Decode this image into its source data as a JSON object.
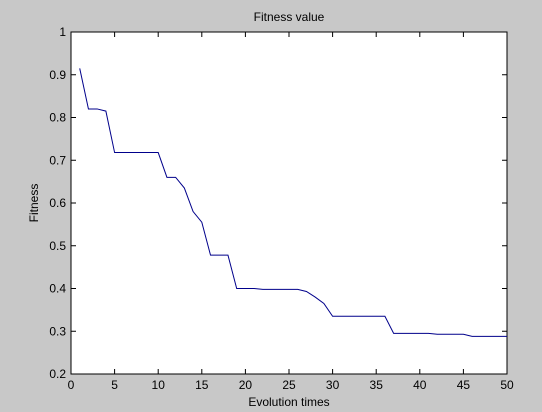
{
  "chart_data": {
    "type": "line",
    "title": "Fitness value",
    "xlabel": "Evolution times",
    "ylabel": "Fitness",
    "xlim": [
      0,
      50
    ],
    "ylim": [
      0.2,
      1
    ],
    "xticks": [
      0,
      5,
      10,
      15,
      20,
      25,
      30,
      35,
      40,
      45,
      50
    ],
    "yticks": [
      0.2,
      0.3,
      0.4,
      0.5,
      0.6,
      0.7,
      0.8,
      0.9,
      1
    ],
    "ytick_labels": [
      "0.2",
      "0.3",
      "0.4",
      "0.5",
      "0.6",
      "0.7",
      "0.8",
      "0.9",
      "1"
    ],
    "grid": false,
    "line_color": "#00008b",
    "series": [
      {
        "x": [
          1,
          2,
          3,
          4,
          5,
          6,
          7,
          8,
          9,
          10,
          11,
          12,
          13,
          14,
          15,
          16,
          17,
          18,
          19,
          20,
          21,
          22,
          23,
          24,
          25,
          26,
          27,
          28,
          29,
          30,
          31,
          32,
          33,
          34,
          35,
          36,
          37,
          38,
          39,
          40,
          41,
          42,
          43,
          44,
          45,
          46,
          47,
          48,
          49,
          50
        ],
        "values": [
          0.915,
          0.82,
          0.82,
          0.815,
          0.718,
          0.718,
          0.718,
          0.718,
          0.718,
          0.718,
          0.66,
          0.66,
          0.635,
          0.58,
          0.555,
          0.478,
          0.478,
          0.478,
          0.4,
          0.4,
          0.4,
          0.398,
          0.398,
          0.398,
          0.398,
          0.398,
          0.393,
          0.38,
          0.365,
          0.335,
          0.335,
          0.335,
          0.335,
          0.335,
          0.335,
          0.335,
          0.295,
          0.295,
          0.295,
          0.295,
          0.295,
          0.293,
          0.293,
          0.293,
          0.293,
          0.288,
          0.288,
          0.288,
          0.288,
          0.288
        ]
      }
    ]
  }
}
